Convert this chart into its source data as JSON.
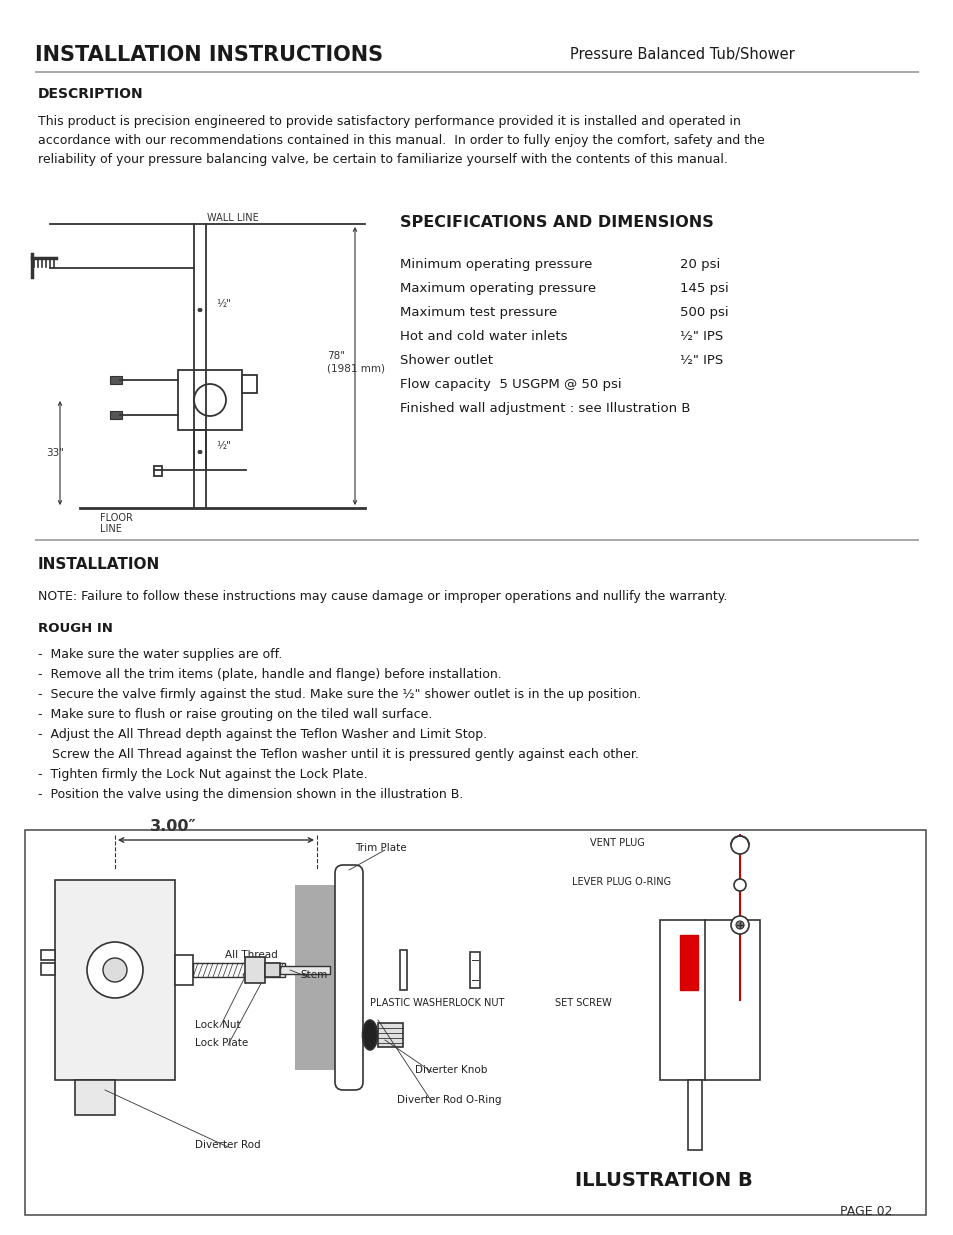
{
  "title": "INSTALLATION INSTRUCTIONS",
  "subtitle_right": "Pressure Balanced Tub/Shower",
  "section1_header": "DESCRIPTION",
  "desc_paragraph": "This product is precision engineered to provide satisfactory performance provided it is installed and operated in\naccordance with our recommendations contained in this manual.  In order to fully enjoy the comfort, safety and the\nreliability of your pressure balancing valve, be certain to familiarize yourself with the contents of this manual.",
  "specs_title": "SPECIFICATIONS AND DIMENSIONS",
  "specs": [
    [
      "Minimum operating pressure",
      "20 psi"
    ],
    [
      "Maximum operating pressure",
      "145 psi"
    ],
    [
      "Maximum test pressure",
      "500 psi"
    ],
    [
      "Hot and cold water inlets",
      "½\" IPS"
    ],
    [
      "Shower outlet",
      "½\" IPS"
    ],
    [
      "Flow capacity  5 USGPM @ 50 psi",
      ""
    ],
    [
      "Finished wall adjustment : see Illustration B",
      ""
    ]
  ],
  "section2_header": "INSTALLATION",
  "note_text": "NOTE: Failure to follow these instructions may cause damage or improper operations and nullify the warranty.",
  "rough_in_header": "ROUGH IN",
  "bullet_items": [
    "Make sure the water supplies are off.",
    "Remove all the trim items (plate, handle and flange) before installation.",
    "Secure the valve firmly against the stud. Make sure the ½\" shower outlet is in the up position.",
    "Make sure to flush or raise grouting on the tiled wall surface.",
    "Adjust the All Thread depth against the Teflon Washer and Limit Stop.",
    "  Screw the All Thread against the Teflon washer until it is pressured gently against each other.",
    "Tighten firmly the Lock Nut against the Lock Plate.",
    "Position the valve using the dimension shown in the illustration B."
  ],
  "illus_b_label": "ILLUSTRATION B",
  "page_label": "PAGE 02",
  "bg_color": "#ffffff",
  "text_color": "#2a2a2a",
  "line_color": "#555555",
  "thin_line": "#888888"
}
